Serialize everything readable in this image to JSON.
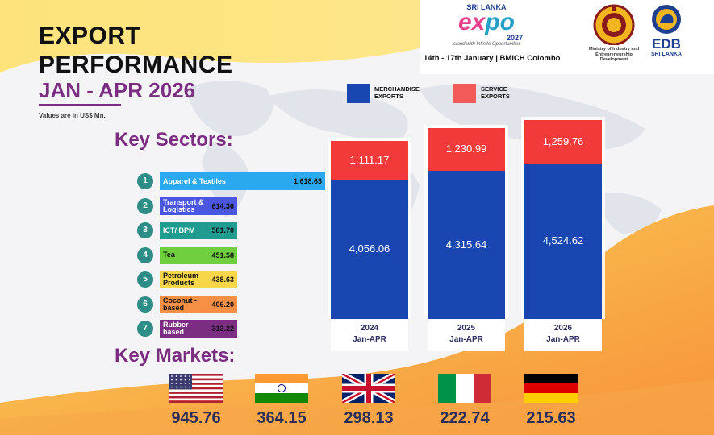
{
  "header": {
    "title_line1": "EXPORT",
    "title_line2": "PERFORMANCE",
    "period": "JAN - APR 2026",
    "units": "Values are in US$ Mn."
  },
  "branding": {
    "expo_top": "SRI LANKA",
    "expo_word_left": "ex",
    "expo_word_right": "po",
    "expo_year": "2027",
    "expo_tagline": "Island with Infinite Opportunities",
    "event_info": "14th - 17th January | BMICH Colombo",
    "ministry": "Ministry of Industry and Entrepreneurship Development",
    "edb_top": "EDB",
    "edb_bottom": "SRI LANKA"
  },
  "legend": {
    "merchandise": "MERCHANDISE EXPORTS",
    "service": "SERVICE EXPORTS"
  },
  "colors": {
    "merchandise": "#1946b0",
    "service": "#f23a3a",
    "accent_purple": "#7b2d82",
    "number_teal": "#2f8d88",
    "value_navy": "#2b2e5a"
  },
  "chart_data": [
    {
      "type": "bar",
      "stacked": true,
      "categories": [
        "2024 Jan-APR",
        "2025 Jan-APR",
        "2026 Jan-APR"
      ],
      "category_lines": [
        [
          "2024",
          "Jan-APR"
        ],
        [
          "2025",
          "Jan-APR"
        ],
        [
          "2026",
          "Jan-APR"
        ]
      ],
      "series": [
        {
          "name": "MERCHANDISE EXPORTS",
          "values": [
            4056.06,
            4315.64,
            4524.62
          ],
          "labels": [
            "4,056.06",
            "4,315.64",
            "4,524.62"
          ],
          "color": "#1946b0"
        },
        {
          "name": "SERVICE EXPORTS",
          "values": [
            1111.17,
            1230.99,
            1259.76
          ],
          "labels": [
            "1,111.17",
            "1,230.99",
            "1,259.76"
          ],
          "color": "#f23a3a"
        }
      ],
      "ylim": [
        0,
        5900
      ]
    },
    {
      "type": "bar",
      "orientation": "horizontal",
      "title": "Key Sectors:",
      "categories": [
        "Apparel & Textiles",
        "Transport & Logistics",
        "ICT/ BPM",
        "Tea",
        "Petroleum Products",
        "Coconut - based",
        "Rubber - based"
      ],
      "ranks": [
        "1",
        "2",
        "3",
        "4",
        "5",
        "6",
        "7"
      ],
      "values": [
        1618.63,
        614.36,
        581.7,
        451.58,
        438.63,
        406.2,
        313.22
      ],
      "labels": [
        "1,618.63",
        "614.36",
        "581.70",
        "451.58",
        "438.63",
        "406.20",
        "313.22"
      ],
      "colors": [
        "#2aa9f0",
        "#4a55e0",
        "#1f9c8f",
        "#6fcf3f",
        "#f7d64a",
        "#f78f45",
        "#7b2d82"
      ],
      "text_dark": [
        false,
        false,
        false,
        true,
        true,
        true,
        false
      ]
    },
    {
      "type": "table",
      "title": "Key Markets:",
      "countries": [
        "usa",
        "india",
        "uk",
        "italy",
        "germany"
      ],
      "flag_icons": [
        "usa-flag-icon",
        "india-flag-icon",
        "uk-flag-icon",
        "italy-flag-icon",
        "germany-flag-icon"
      ],
      "values": [
        945.76,
        364.15,
        298.13,
        222.74,
        215.63
      ],
      "labels": [
        "945.76",
        "364.15",
        "298.13",
        "222.74",
        "215.63"
      ]
    }
  ]
}
